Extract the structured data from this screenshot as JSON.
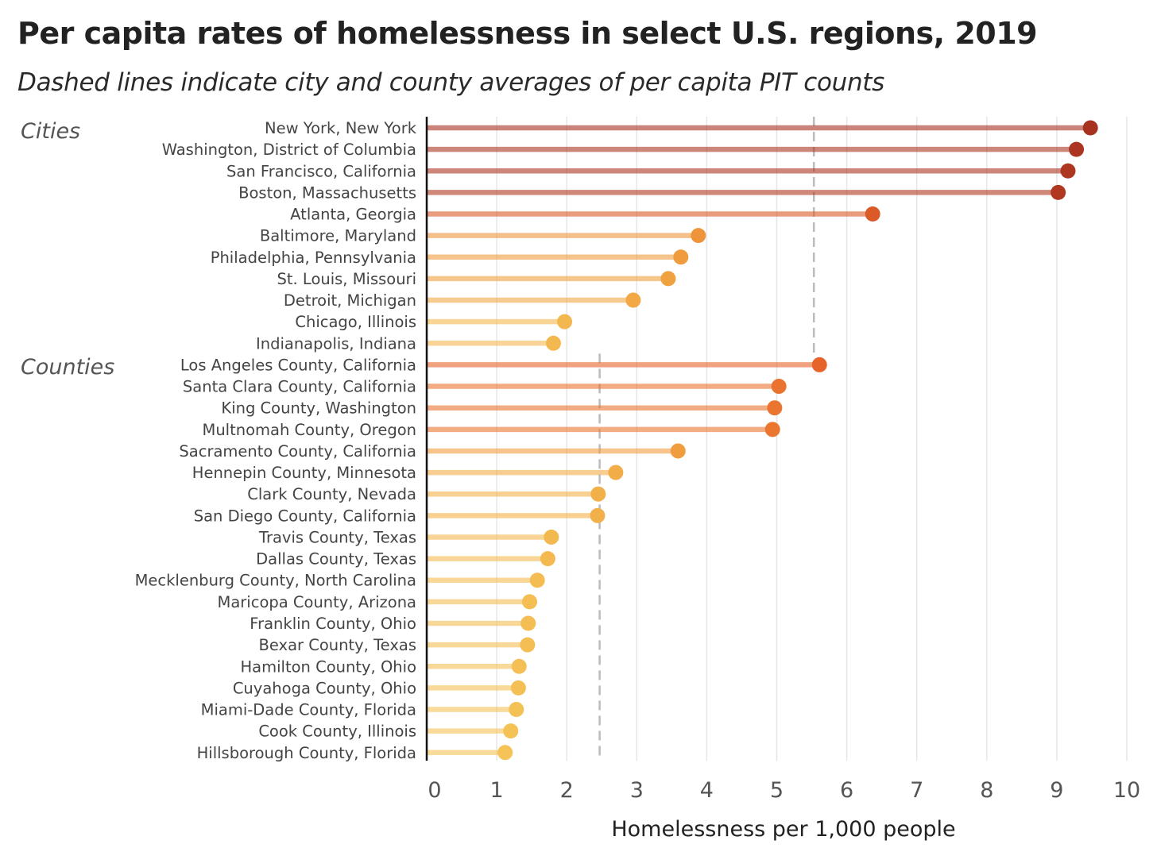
{
  "title": "Per capita rates of homelessness in select U.S. regions, 2019",
  "subtitle": "Dashed lines indicate city and county averages of per capita PIT counts",
  "chart_data": {
    "type": "lollipop",
    "xlabel": "Homelessness per 1,000 people",
    "xlim": [
      0,
      10
    ],
    "xticks": [
      "0",
      "1",
      "2",
      "3",
      "4",
      "5",
      "6",
      "7",
      "8",
      "9",
      "10"
    ],
    "grid": "vertical",
    "groups": [
      {
        "name": "Cities",
        "average": 5.53,
        "points": [
          {
            "label": "New York, New York",
            "value": 9.48
          },
          {
            "label": "Washington, District of Columbia",
            "value": 9.28
          },
          {
            "label": "San Francisco, California",
            "value": 9.16
          },
          {
            "label": "Boston, Massachusetts",
            "value": 9.02
          },
          {
            "label": "Atlanta, Georgia",
            "value": 6.37
          },
          {
            "label": "Baltimore, Maryland",
            "value": 3.88
          },
          {
            "label": "Philadelphia, Pennsylvania",
            "value": 3.63
          },
          {
            "label": "St. Louis, Missouri",
            "value": 3.45
          },
          {
            "label": "Detroit, Michigan",
            "value": 2.95
          },
          {
            "label": "Chicago, Illinois",
            "value": 1.97
          },
          {
            "label": "Indianapolis, Indiana",
            "value": 1.81
          }
        ]
      },
      {
        "name": "Counties",
        "average": 2.47,
        "points": [
          {
            "label": "Los Angeles County, California",
            "value": 5.61
          },
          {
            "label": "Santa Clara County, California",
            "value": 5.03
          },
          {
            "label": "King County, Washington",
            "value": 4.97
          },
          {
            "label": "Multnomah County, Oregon",
            "value": 4.94
          },
          {
            "label": "Sacramento County, California",
            "value": 3.59
          },
          {
            "label": "Hennepin County, Minnesota",
            "value": 2.7
          },
          {
            "label": "Clark County, Nevada",
            "value": 2.45
          },
          {
            "label": "San Diego County, California",
            "value": 2.44
          },
          {
            "label": "Travis County, Texas",
            "value": 1.78
          },
          {
            "label": "Dallas County, Texas",
            "value": 1.73
          },
          {
            "label": "Mecklenburg County, North Carolina",
            "value": 1.58
          },
          {
            "label": "Maricopa County, Arizona",
            "value": 1.47
          },
          {
            "label": "Franklin County, Ohio",
            "value": 1.45
          },
          {
            "label": "Bexar County, Texas",
            "value": 1.44
          },
          {
            "label": "Hamilton County, Ohio",
            "value": 1.32
          },
          {
            "label": "Cuyahoga County, Ohio",
            "value": 1.31
          },
          {
            "label": "Miami-Dade County, Florida",
            "value": 1.28
          },
          {
            "label": "Cook County, Illinois",
            "value": 1.2
          },
          {
            "label": "Hillsborough County, Florida",
            "value": 1.12
          }
        ]
      }
    ],
    "colors": {
      "low": "#f5c558",
      "mid": "#f0a040",
      "high": "#e8652a",
      "max": "#a83220",
      "average_line": "#bbbbbb",
      "grid": "#e6e6e6",
      "axis": "#111111",
      "label": "#444444"
    }
  }
}
